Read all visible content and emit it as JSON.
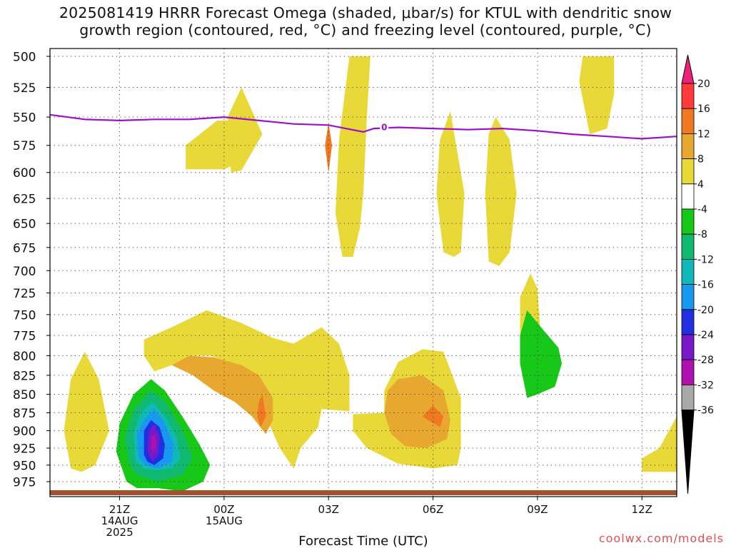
{
  "title": {
    "line1": "2025081419 HRRR Forecast Omega (shaded, μbar/s) for KTUL with dendritic snow",
    "line2": "growth region (contoured, red, °C) and freezing level (contoured, purple, °C)"
  },
  "credit": "coolwx.com/models",
  "chart_data": {
    "type": "contour",
    "title": "2025081419 HRRR Forecast Omega (shaded, μbar/s) for KTUL with dendritic snow growth region (contoured, red, °C) and freezing level (contoured, purple, °C)",
    "xlabel": "Forecast Time (UTC)",
    "ylabel": "",
    "x_range_hours": [
      -2.0,
      16.0
    ],
    "y_range_hPa": [
      500,
      1000
    ],
    "y_scale": "log-pressure",
    "grid": true,
    "x_ticks": [
      {
        "h": 0,
        "lines": [
          "21Z",
          "14AUG",
          "2025"
        ]
      },
      {
        "h": 3,
        "lines": [
          "00Z",
          "15AUG"
        ]
      },
      {
        "h": 6,
        "lines": [
          "03Z"
        ]
      },
      {
        "h": 9,
        "lines": [
          "06Z"
        ]
      },
      {
        "h": 12,
        "lines": [
          "09Z"
        ]
      },
      {
        "h": 15,
        "lines": [
          "12Z"
        ]
      }
    ],
    "y_ticks": [
      500,
      525,
      550,
      575,
      600,
      625,
      650,
      675,
      700,
      725,
      750,
      775,
      800,
      825,
      850,
      875,
      900,
      925,
      950,
      975
    ],
    "colorbar": {
      "labels": [
        "20",
        "16",
        "12",
        "8",
        "4",
        "-4",
        "-8",
        "-12",
        "-16",
        "-20",
        "-24",
        "-28",
        "-32",
        "-36"
      ],
      "colors_top_to_bottom": [
        "#ff3a3a",
        "#f07820",
        "#e8a830",
        "#e8d838",
        "#ffffff",
        "#18c818",
        "#10b870",
        "#10b8b8",
        "#1898f0",
        "#2030e0",
        "#7818c8",
        "#b010b0",
        "#a8a8a8"
      ],
      "top_arrow_color": "#f0207a",
      "bottom_arrow_color": "#000000"
    },
    "freezing_level": {
      "label": "0",
      "color": "#9b10c8",
      "points": [
        [
          -2.0,
          548
        ],
        [
          -1.0,
          552
        ],
        [
          0.0,
          553
        ],
        [
          1.0,
          552
        ],
        [
          2.0,
          552
        ],
        [
          3.0,
          550
        ],
        [
          4.0,
          553
        ],
        [
          5.0,
          556
        ],
        [
          6.0,
          557
        ],
        [
          7.0,
          563
        ],
        [
          7.3,
          560
        ],
        [
          8.0,
          559
        ],
        [
          9.0,
          560
        ],
        [
          10.0,
          561
        ],
        [
          11.0,
          560
        ],
        [
          12.0,
          562
        ],
        [
          13.0,
          565
        ],
        [
          14.0,
          567
        ],
        [
          15.0,
          569
        ],
        [
          16.0,
          567
        ]
      ]
    },
    "omega_regions": [
      {
        "level": 4,
        "points": [
          [
            -1.4,
            955
          ],
          [
            -1.6,
            900
          ],
          [
            -1.4,
            830
          ],
          [
            -1.0,
            795
          ],
          [
            -0.6,
            830
          ],
          [
            -0.3,
            900
          ],
          [
            -0.7,
            950
          ],
          [
            -1.1,
            960
          ]
        ]
      },
      {
        "level": 4,
        "points": [
          [
            0.7,
            780
          ],
          [
            1.5,
            765
          ],
          [
            2.5,
            745
          ],
          [
            3.5,
            760
          ],
          [
            4.4,
            778
          ],
          [
            5.0,
            785
          ],
          [
            5.8,
            765
          ],
          [
            6.3,
            785
          ],
          [
            6.6,
            825
          ],
          [
            6.6,
            873
          ],
          [
            5.8,
            870
          ],
          [
            5.7,
            895
          ],
          [
            5.2,
            925
          ],
          [
            5.0,
            955
          ],
          [
            4.6,
            925
          ],
          [
            4.2,
            880
          ],
          [
            3.8,
            840
          ],
          [
            3.3,
            810
          ],
          [
            2.6,
            800
          ],
          [
            2.0,
            800
          ],
          [
            1.5,
            812
          ],
          [
            1.0,
            820
          ],
          [
            0.7,
            800
          ]
        ]
      },
      {
        "level": 4,
        "points": [
          [
            1.9,
            575
          ],
          [
            2.8,
            553
          ],
          [
            3.5,
            553
          ],
          [
            4.0,
            570
          ],
          [
            3.5,
            590
          ],
          [
            3.0,
            597
          ],
          [
            1.9,
            597
          ]
        ]
      },
      {
        "level": 4,
        "points": [
          [
            3.2,
            600
          ],
          [
            3.1,
            550
          ],
          [
            3.5,
            525
          ],
          [
            4.1,
            565
          ],
          [
            3.5,
            598
          ]
        ]
      },
      {
        "level": 4,
        "points": [
          [
            6.4,
            685
          ],
          [
            6.2,
            640
          ],
          [
            6.3,
            570
          ],
          [
            6.6,
            500
          ],
          [
            7.2,
            500
          ],
          [
            7.1,
            550
          ],
          [
            7.0,
            620
          ],
          [
            6.9,
            655
          ],
          [
            6.7,
            685
          ]
        ]
      },
      {
        "level": 4,
        "points": [
          [
            9.3,
            680
          ],
          [
            9.1,
            620
          ],
          [
            9.2,
            570
          ],
          [
            9.5,
            545
          ],
          [
            9.9,
            620
          ],
          [
            9.8,
            680
          ],
          [
            9.6,
            685
          ]
        ]
      },
      {
        "level": 4,
        "points": [
          [
            10.6,
            690
          ],
          [
            10.5,
            620
          ],
          [
            10.6,
            565
          ],
          [
            10.8,
            550
          ],
          [
            11.2,
            570
          ],
          [
            11.4,
            620
          ],
          [
            11.2,
            680
          ],
          [
            10.9,
            695
          ]
        ]
      },
      {
        "level": 4,
        "points": [
          [
            11.5,
            780
          ],
          [
            11.5,
            730
          ],
          [
            11.8,
            703
          ],
          [
            12.0,
            720
          ],
          [
            12.1,
            780
          ],
          [
            11.8,
            810
          ],
          [
            11.7,
            800
          ]
        ]
      },
      {
        "level": 4,
        "points": [
          [
            6.7,
            877
          ],
          [
            7.6,
            875
          ],
          [
            7.6,
            845
          ],
          [
            8.0,
            808
          ],
          [
            8.7,
            792
          ],
          [
            9.3,
            795
          ],
          [
            9.8,
            855
          ],
          [
            9.8,
            925
          ],
          [
            9.7,
            950
          ],
          [
            9.0,
            955
          ],
          [
            8.0,
            948
          ],
          [
            7.1,
            925
          ],
          [
            6.7,
            900
          ]
        ]
      },
      {
        "level": 4,
        "points": [
          [
            13.5,
            565
          ],
          [
            13.2,
            520
          ],
          [
            13.3,
            500
          ],
          [
            14.2,
            500
          ],
          [
            14.2,
            530
          ],
          [
            14.0,
            560
          ]
        ]
      },
      {
        "level": 4,
        "points": [
          [
            15.0,
            955
          ],
          [
            15.0,
            940
          ],
          [
            15.5,
            925
          ],
          [
            16.0,
            880
          ],
          [
            16.0,
            960
          ],
          [
            15.0,
            960
          ]
        ]
      },
      {
        "level": 8,
        "points": [
          [
            1.5,
            812
          ],
          [
            2.0,
            800
          ],
          [
            2.7,
            802
          ],
          [
            3.5,
            812
          ],
          [
            4.0,
            825
          ],
          [
            4.4,
            855
          ],
          [
            4.4,
            885
          ],
          [
            4.2,
            905
          ],
          [
            3.8,
            880
          ],
          [
            3.3,
            860
          ],
          [
            2.7,
            845
          ],
          [
            2.1,
            825
          ]
        ]
      },
      {
        "level": 8,
        "points": [
          [
            7.6,
            875
          ],
          [
            7.7,
            845
          ],
          [
            8.0,
            830
          ],
          [
            8.7,
            825
          ],
          [
            9.3,
            845
          ],
          [
            9.5,
            885
          ],
          [
            9.4,
            912
          ],
          [
            8.8,
            925
          ],
          [
            8.2,
            922
          ],
          [
            7.8,
            905
          ]
        ]
      },
      {
        "level": 12,
        "points": [
          [
            4.0,
            860
          ],
          [
            4.1,
            850
          ],
          [
            4.2,
            880
          ],
          [
            4.05,
            895
          ],
          [
            3.95,
            880
          ]
        ]
      },
      {
        "level": 12,
        "points": [
          [
            8.7,
            880
          ],
          [
            9.0,
            865
          ],
          [
            9.3,
            880
          ],
          [
            9.2,
            895
          ],
          [
            8.95,
            888
          ]
        ]
      },
      {
        "level": 12,
        "points": [
          [
            6.0,
            600
          ],
          [
            5.9,
            575
          ],
          [
            6.0,
            555
          ],
          [
            6.1,
            575
          ]
        ]
      },
      {
        "level": -8,
        "points": [
          [
            0.2,
            975
          ],
          [
            -0.1,
            930
          ],
          [
            0.0,
            890
          ],
          [
            0.4,
            850
          ],
          [
            0.9,
            830
          ],
          [
            1.3,
            845
          ],
          [
            1.8,
            880
          ],
          [
            2.3,
            920
          ],
          [
            2.6,
            950
          ],
          [
            2.4,
            975
          ],
          [
            1.8,
            990
          ],
          [
            1.1,
            985
          ],
          [
            0.5,
            985
          ]
        ]
      },
      {
        "level": -8,
        "points": [
          [
            11.7,
            855
          ],
          [
            11.5,
            810
          ],
          [
            11.5,
            775
          ],
          [
            11.7,
            745
          ],
          [
            12.2,
            770
          ],
          [
            12.6,
            790
          ],
          [
            12.7,
            810
          ],
          [
            12.5,
            840
          ],
          [
            12.0,
            850
          ]
        ]
      },
      {
        "level": -12,
        "points": [
          [
            0.3,
            950
          ],
          [
            0.15,
            910
          ],
          [
            0.4,
            870
          ],
          [
            0.9,
            845
          ],
          [
            1.3,
            860
          ],
          [
            1.8,
            900
          ],
          [
            2.1,
            940
          ],
          [
            1.8,
            965
          ],
          [
            1.1,
            975
          ],
          [
            0.5,
            965
          ]
        ]
      },
      {
        "level": -16,
        "points": [
          [
            0.45,
            945
          ],
          [
            0.4,
            905
          ],
          [
            0.6,
            875
          ],
          [
            0.95,
            860
          ],
          [
            1.3,
            880
          ],
          [
            1.65,
            910
          ],
          [
            1.75,
            940
          ],
          [
            1.5,
            955
          ],
          [
            1.0,
            958
          ],
          [
            0.7,
            955
          ]
        ]
      },
      {
        "level": -20,
        "points": [
          [
            0.55,
            940
          ],
          [
            0.5,
            905
          ],
          [
            0.7,
            885
          ],
          [
            1.0,
            870
          ],
          [
            1.3,
            890
          ],
          [
            1.55,
            920
          ],
          [
            1.5,
            945
          ],
          [
            1.1,
            955
          ],
          [
            0.75,
            950
          ]
        ]
      },
      {
        "level": -24,
        "points": [
          [
            0.7,
            935
          ],
          [
            0.7,
            900
          ],
          [
            0.9,
            885
          ],
          [
            1.15,
            895
          ],
          [
            1.3,
            920
          ],
          [
            1.25,
            940
          ],
          [
            1.0,
            950
          ],
          [
            0.8,
            945
          ]
        ]
      },
      {
        "level": -28,
        "points": [
          [
            0.8,
            930
          ],
          [
            0.85,
            900
          ],
          [
            1.0,
            890
          ],
          [
            1.15,
            910
          ],
          [
            1.1,
            935
          ],
          [
            0.95,
            945
          ]
        ]
      },
      {
        "level": -32,
        "points": [
          [
            0.9,
            925
          ],
          [
            0.92,
            908
          ],
          [
            1.02,
            905
          ],
          [
            1.05,
            920
          ],
          [
            0.97,
            932
          ]
        ]
      }
    ]
  }
}
